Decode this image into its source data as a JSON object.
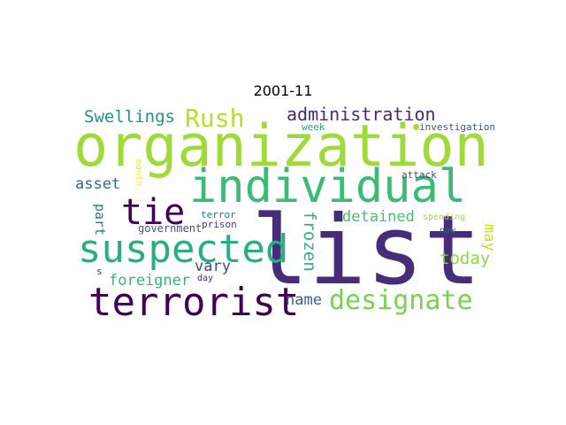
{
  "title": "2001-11",
  "words": {
    "list": {
      "text": "list",
      "color": "#472c7a"
    },
    "organization": {
      "text": "organization",
      "color": "#a0da39"
    },
    "individual": {
      "text": "individual",
      "color": "#3bbb75"
    },
    "suspected": {
      "text": "suspected",
      "color": "#29af7f"
    },
    "terrorist": {
      "text": "terrorist",
      "color": "#440154"
    },
    "tie": {
      "text": "tie",
      "color": "#440154"
    },
    "rush": {
      "text": "Rush",
      "color": "#b5de2b"
    },
    "designate": {
      "text": "designate",
      "color": "#7ad151"
    },
    "administration": {
      "text": "administration",
      "color": "#482878"
    },
    "swellings": {
      "text": "Swellings",
      "color": "#21918c"
    },
    "frozen": {
      "text": "frozen",
      "color": "#2db27d"
    },
    "detained": {
      "text": "detained",
      "color": "#48c16e"
    },
    "today": {
      "text": "today",
      "color": "#8fd744"
    },
    "may": {
      "text": "may",
      "color": "#c8e020"
    },
    "vary": {
      "text": "vary",
      "color": "#3e4989"
    },
    "name": {
      "text": "name",
      "color": "#355f8d"
    },
    "foreigner": {
      "text": "foreigner",
      "color": "#35b779"
    },
    "asset": {
      "text": "asset",
      "color": "#31688e"
    },
    "part": {
      "text": "part",
      "color": "#2a788e"
    },
    "government": {
      "text": "government",
      "color": "#3b528b"
    },
    "week": {
      "text": "week",
      "color": "#21a585"
    },
    "investigation": {
      "text": "investigation",
      "color": "#38598c"
    },
    "attack": {
      "text": "attack",
      "color": "#3e4a89"
    },
    "month": {
      "text": "month",
      "color": "#fde725"
    },
    "terror": {
      "text": "terror",
      "color": "#2c728e"
    },
    "prison": {
      "text": "prison",
      "color": "#443983"
    },
    "spending": {
      "text": "spending",
      "color": "#a5db36"
    },
    "now": {
      "text": "now",
      "color": "#31688e"
    },
    "s": {
      "text": "s",
      "color": "#46337e"
    },
    "day": {
      "text": "day",
      "color": "#482475"
    }
  }
}
